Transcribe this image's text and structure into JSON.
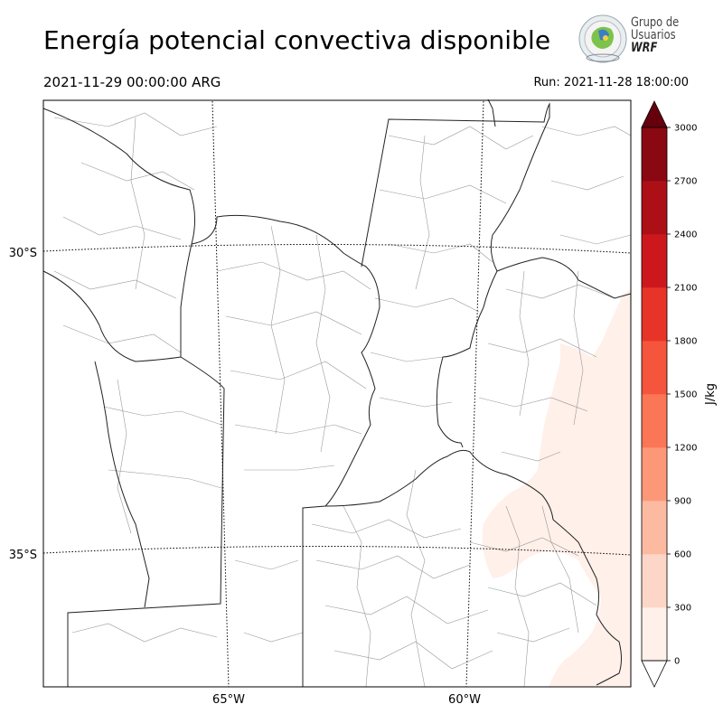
{
  "header": {
    "title": "Energía potencial convectiva disponible",
    "valid_time": "2021-11-29 00:00:00 ARG",
    "run_time": "Run: 2021-11-28 18:00:00"
  },
  "logo": {
    "line1": "Grupo de",
    "line2": "Usuarios",
    "line3": "WRF"
  },
  "map": {
    "lat_labels": [
      "30°S",
      "35°S"
    ],
    "lon_labels": [
      "65°W",
      "60°W"
    ]
  },
  "colorbar": {
    "unit": "J/kg",
    "ticks": [
      "0",
      "300",
      "600",
      "900",
      "1200",
      "1500",
      "1800",
      "2100",
      "2400",
      "2700",
      "3000"
    ],
    "colors": [
      "#fff0ea",
      "#fdd6c8",
      "#fcbba1",
      "#fc9878",
      "#fb7656",
      "#f5553c",
      "#e63428",
      "#cc181d",
      "#ac1016",
      "#8a0812"
    ],
    "under_color": "#ffffff",
    "over_color": "#67000d"
  }
}
